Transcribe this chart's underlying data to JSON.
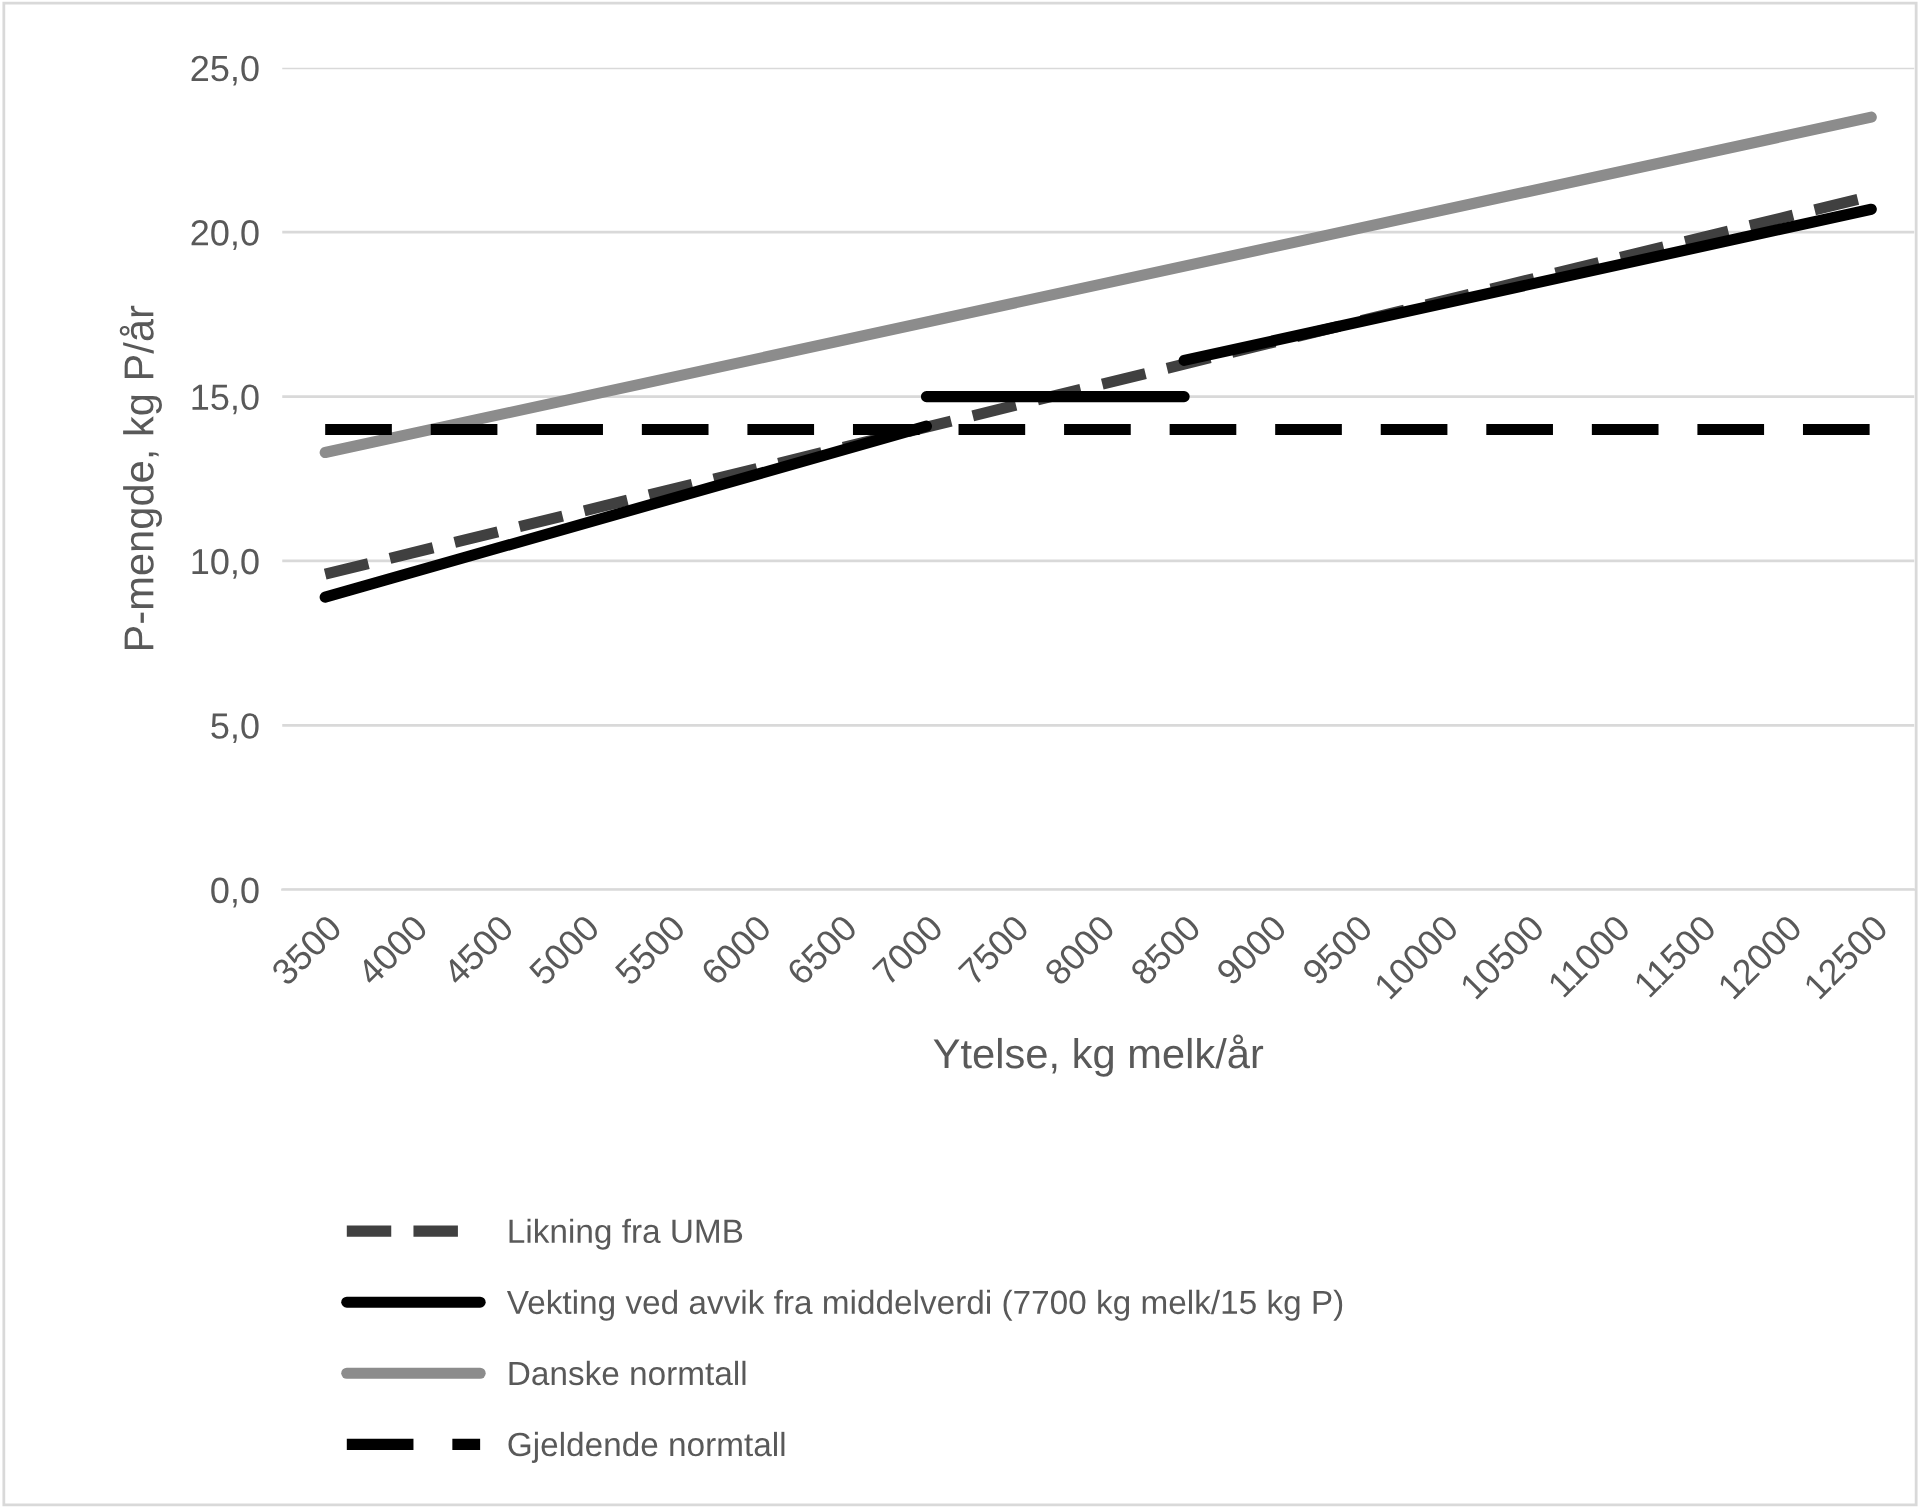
{
  "chart_data": {
    "type": "line",
    "xlabel": "Ytelse, kg melk/år",
    "ylabel": "P-mengde, kg P/år",
    "xlim": [
      3250,
      12750
    ],
    "xticks": [
      3500,
      4000,
      4500,
      5000,
      5500,
      6000,
      6500,
      7000,
      7500,
      8000,
      8500,
      9000,
      9500,
      10000,
      10500,
      11000,
      11500,
      12000,
      12500
    ],
    "ylim": [
      0,
      25
    ],
    "yticks": [
      {
        "value": 0,
        "label": "0,0"
      },
      {
        "value": 5,
        "label": "5,0"
      },
      {
        "value": 10,
        "label": "10,0"
      },
      {
        "value": 15,
        "label": "15,0"
      },
      {
        "value": 20,
        "label": "20,0"
      },
      {
        "value": 25,
        "label": "25,0"
      }
    ],
    "grid": "y",
    "legend": "bottom",
    "marker": "none",
    "series": [
      {
        "name": "Likning fra UMB",
        "color": "#404040",
        "line_style": "dashed",
        "x": [
          3500,
          12500
        ],
        "values": [
          9.6,
          21.1
        ]
      },
      {
        "name": "Vekting ved avvik fra middelverdi (7700 kg melk/15 kg P)",
        "color": "#000000",
        "line_style": "solid",
        "x": [
          3500,
          7000,
          null,
          7000,
          8500,
          null,
          8500,
          12500
        ],
        "values": [
          8.9,
          14.1,
          null,
          15.0,
          15.0,
          null,
          16.1,
          20.7
        ]
      },
      {
        "name": "Danske normtall",
        "color": "#8c8c8c",
        "line_style": "solid",
        "x": [
          3500,
          12500
        ],
        "values": [
          13.3,
          23.5
        ]
      },
      {
        "name": "Gjeldende normtall",
        "color": "#000000",
        "line_style": "longdash",
        "x": [
          3500,
          12500
        ],
        "values": [
          14.0,
          14.0
        ]
      }
    ]
  }
}
